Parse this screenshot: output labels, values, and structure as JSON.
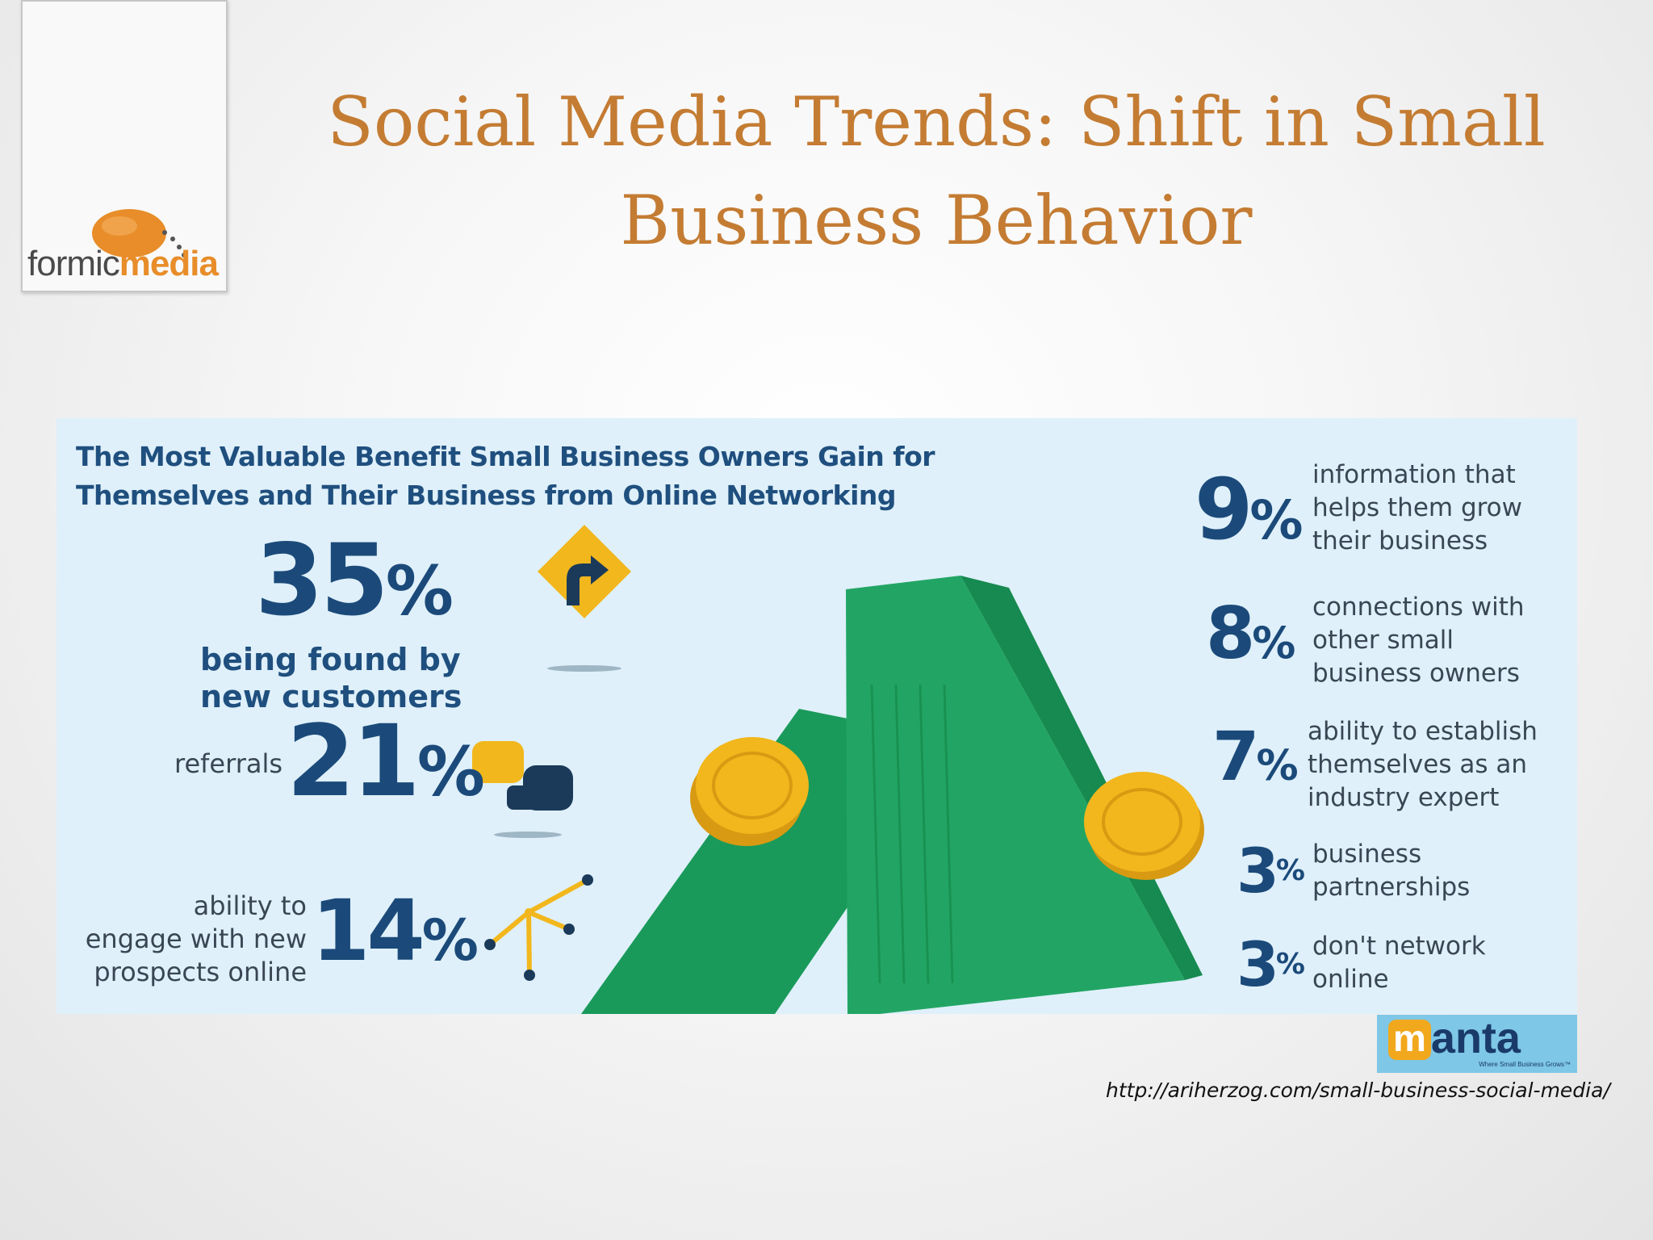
{
  "title": "Social Media Trends: Shift in Small Business Behavior",
  "logo": {
    "text_light": "formic",
    "text_bold": "media",
    "color": "#e88d2a"
  },
  "infographic": {
    "heading_line1": "The Most Valuable Benefit Small Business Owners Gain for",
    "heading_line2": "Themselves and Their Business from Online Networking",
    "left_items": [
      {
        "value": "35",
        "unit": "%",
        "label_line1": "being found by",
        "label_line2": "new customers",
        "icon": "road-sign-turn-icon"
      },
      {
        "value": "21",
        "unit": "%",
        "label_line1": "referrals",
        "icon": "speech-bubbles-icon"
      },
      {
        "value": "14",
        "unit": "%",
        "label_line1": "ability to",
        "label_line2": "engage with new",
        "label_line3": "prospects online",
        "icon": "network-nodes-icon"
      }
    ],
    "right_items": [
      {
        "value": "9",
        "unit": "%",
        "label_line1": "information that",
        "label_line2": "helps them grow",
        "label_line3": "their business"
      },
      {
        "value": "8",
        "unit": "%",
        "label_line1": "connections with",
        "label_line2": "other small",
        "label_line3": "business owners"
      },
      {
        "value": "7",
        "unit": "%",
        "label_line1": "ability to establish",
        "label_line2": "themselves as an",
        "label_line3": "industry expert"
      },
      {
        "value": "3",
        "unit": "%",
        "label_line1": "business",
        "label_line2": "partnerships"
      },
      {
        "value": "3",
        "unit": "%",
        "label_line1": "don't network",
        "label_line2": "online"
      }
    ],
    "colors": {
      "text_primary": "#1b4a7a",
      "background": "#dff0fa",
      "money_green": "#1a9a5a",
      "coin_gold": "#f2b71c"
    }
  },
  "manta_logo": {
    "m": "m",
    "rest": "anta",
    "tagline": "Where Small Business Grows™"
  },
  "source_url": "http://ariherzog.com/small-business-social-media/"
}
